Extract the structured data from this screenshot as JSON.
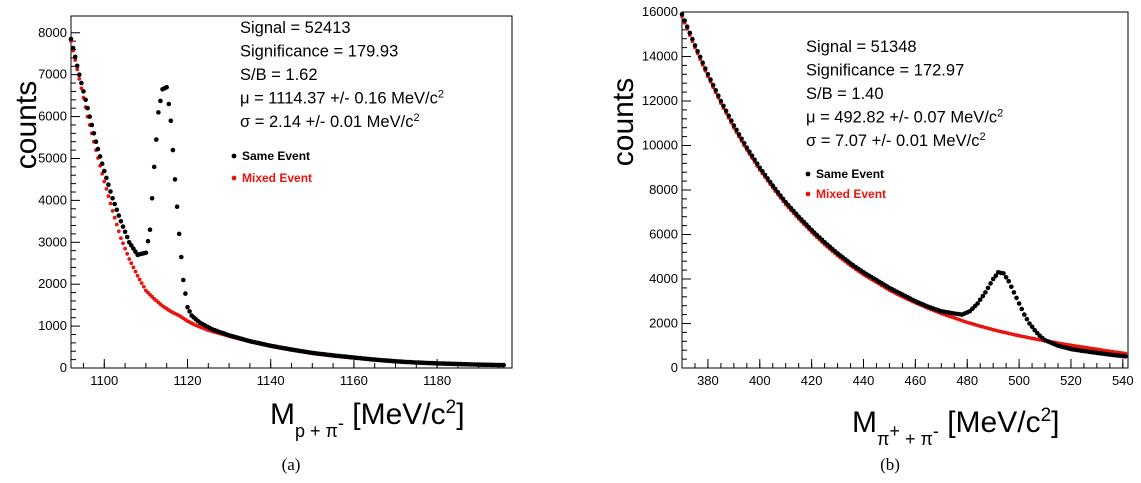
{
  "colors": {
    "same": "#000000",
    "mixed": "#e8140e"
  },
  "chart_data": [
    {
      "type": "scatter",
      "caption": "(a)",
      "ylabel": "counts",
      "xlabel_main": "M",
      "xlabel_sub": "p + π",
      "xlabel_sup": "-",
      "xlabel_unit": "[MeV/c",
      "xlabel_unit_sup": "2",
      "xlabel_close": "]",
      "xlim": [
        1092,
        1198
      ],
      "ylim": [
        0,
        8400
      ],
      "xticks": [
        1100,
        1120,
        1140,
        1160,
        1180
      ],
      "yticks": [
        0,
        1000,
        2000,
        3000,
        4000,
        5000,
        6000,
        7000,
        8000
      ],
      "annotations": {
        "signal": "Signal = 52413",
        "significance": "Significance = 179.93",
        "sb": "S/B = 1.62",
        "mu_main": "μ = 1114.37 +/- 0.16 MeV/c",
        "mu_sup": "2",
        "sigma_main": "σ = 2.14 +/- 0.01 MeV/c",
        "sigma_sup": "2"
      },
      "legend": [
        "Same Event",
        "Mixed Event"
      ],
      "series": [
        {
          "name": "Same Event",
          "color": "#000000",
          "points": [
            [
              1092,
              7850
            ],
            [
              1094,
              7000
            ],
            [
              1096,
              6200
            ],
            [
              1098,
              5400
            ],
            [
              1100,
              4700
            ],
            [
              1102,
              4050
            ],
            [
              1104,
              3500
            ],
            [
              1106,
              3000
            ],
            [
              1108,
              2700
            ],
            [
              1110,
              2750
            ],
            [
              1111,
              3300
            ],
            [
              1112,
              4800
            ],
            [
              1113,
              6100
            ],
            [
              1114,
              6650
            ],
            [
              1115,
              6700
            ],
            [
              1116,
              5900
            ],
            [
              1117,
              4500
            ],
            [
              1118,
              3200
            ],
            [
              1119,
              2100
            ],
            [
              1120,
              1450
            ],
            [
              1121,
              1250
            ],
            [
              1123,
              1080
            ],
            [
              1126,
              920
            ],
            [
              1130,
              780
            ],
            [
              1135,
              640
            ],
            [
              1140,
              530
            ],
            [
              1145,
              440
            ],
            [
              1150,
              360
            ],
            [
              1155,
              300
            ],
            [
              1160,
              250
            ],
            [
              1165,
              200
            ],
            [
              1170,
              160
            ],
            [
              1175,
              130
            ],
            [
              1180,
              110
            ],
            [
              1185,
              95
            ],
            [
              1190,
              80
            ],
            [
              1196,
              70
            ]
          ]
        },
        {
          "name": "Mixed Event",
          "color": "#e8140e",
          "points": [
            [
              1092,
              7800
            ],
            [
              1094,
              6900
            ],
            [
              1096,
              6000
            ],
            [
              1098,
              5200
            ],
            [
              1100,
              4450
            ],
            [
              1102,
              3750
            ],
            [
              1104,
              3100
            ],
            [
              1106,
              2600
            ],
            [
              1108,
              2200
            ],
            [
              1110,
              1850
            ],
            [
              1112,
              1650
            ],
            [
              1114,
              1480
            ],
            [
              1116,
              1350
            ],
            [
              1118,
              1250
            ],
            [
              1120,
              1120
            ],
            [
              1122,
              1020
            ],
            [
              1125,
              900
            ],
            [
              1130,
              760
            ],
            [
              1135,
              630
            ],
            [
              1140,
              520
            ],
            [
              1145,
              430
            ],
            [
              1150,
              350
            ],
            [
              1155,
              290
            ],
            [
              1160,
              240
            ],
            [
              1165,
              190
            ],
            [
              1170,
              150
            ],
            [
              1175,
              125
            ],
            [
              1180,
              105
            ],
            [
              1185,
              90
            ],
            [
              1190,
              75
            ],
            [
              1196,
              65
            ]
          ]
        }
      ]
    },
    {
      "type": "scatter",
      "caption": "(b)",
      "ylabel": "counts",
      "xlabel_main": "M",
      "xlabel_sub": "π",
      "xlabel_subsup1": "+",
      "xlabel_sub2": " + π",
      "xlabel_sup": "-",
      "xlabel_unit": "[MeV/c",
      "xlabel_unit_sup": "2",
      "xlabel_close": "]",
      "xlim": [
        370,
        542
      ],
      "ylim": [
        0,
        16000
      ],
      "xticks": [
        380,
        400,
        420,
        440,
        460,
        480,
        500,
        520,
        540
      ],
      "yticks": [
        0,
        2000,
        4000,
        6000,
        8000,
        10000,
        12000,
        14000,
        16000
      ],
      "annotations": {
        "signal": "Signal = 51348",
        "significance": "Significance = 172.97",
        "sb": "S/B = 1.40",
        "mu_main": "μ = 492.82 +/- 0.07 MeV/c",
        "mu_sup": "2",
        "sigma_main": "σ = 7.07 +/- 0.01 MeV/c",
        "sigma_sup": "2"
      },
      "legend": [
        "Same Event",
        "Mixed Event"
      ],
      "series": [
        {
          "name": "Same Event",
          "color": "#000000",
          "points": [
            [
              370,
              15900
            ],
            [
              375,
              14500
            ],
            [
              380,
              13200
            ],
            [
              385,
              12000
            ],
            [
              390,
              10900
            ],
            [
              395,
              9900
            ],
            [
              400,
              9000
            ],
            [
              405,
              8200
            ],
            [
              410,
              7450
            ],
            [
              415,
              6800
            ],
            [
              420,
              6200
            ],
            [
              425,
              5650
            ],
            [
              430,
              5150
            ],
            [
              435,
              4700
            ],
            [
              440,
              4300
            ],
            [
              445,
              3950
            ],
            [
              450,
              3600
            ],
            [
              455,
              3300
            ],
            [
              460,
              3000
            ],
            [
              465,
              2750
            ],
            [
              470,
              2550
            ],
            [
              475,
              2450
            ],
            [
              478,
              2400
            ],
            [
              481,
              2550
            ],
            [
              484,
              2900
            ],
            [
              487,
              3400
            ],
            [
              490,
              4000
            ],
            [
              492,
              4300
            ],
            [
              494,
              4250
            ],
            [
              496,
              3900
            ],
            [
              498,
              3400
            ],
            [
              500,
              2900
            ],
            [
              502,
              2400
            ],
            [
              504,
              2000
            ],
            [
              506,
              1700
            ],
            [
              508,
              1450
            ],
            [
              510,
              1250
            ],
            [
              515,
              1000
            ],
            [
              520,
              850
            ],
            [
              525,
              760
            ],
            [
              530,
              680
            ],
            [
              535,
              600
            ],
            [
              541,
              520
            ]
          ]
        },
        {
          "name": "Mixed Event",
          "color": "#e8140e",
          "points": [
            [
              370,
              15800
            ],
            [
              375,
              14400
            ],
            [
              380,
              13100
            ],
            [
              385,
              11900
            ],
            [
              390,
              10800
            ],
            [
              395,
              9800
            ],
            [
              400,
              8900
            ],
            [
              405,
              8100
            ],
            [
              410,
              7350
            ],
            [
              415,
              6700
            ],
            [
              420,
              6100
            ],
            [
              425,
              5550
            ],
            [
              430,
              5050
            ],
            [
              435,
              4600
            ],
            [
              440,
              4200
            ],
            [
              445,
              3850
            ],
            [
              450,
              3500
            ],
            [
              455,
              3200
            ],
            [
              460,
              2930
            ],
            [
              465,
              2680
            ],
            [
              470,
              2450
            ],
            [
              475,
              2250
            ],
            [
              480,
              2050
            ],
            [
              485,
              1880
            ],
            [
              490,
              1720
            ],
            [
              495,
              1580
            ],
            [
              500,
              1450
            ],
            [
              505,
              1330
            ],
            [
              510,
              1220
            ],
            [
              515,
              1120
            ],
            [
              520,
              1020
            ],
            [
              525,
              930
            ],
            [
              530,
              840
            ],
            [
              535,
              750
            ],
            [
              541,
              650
            ]
          ]
        }
      ]
    }
  ]
}
